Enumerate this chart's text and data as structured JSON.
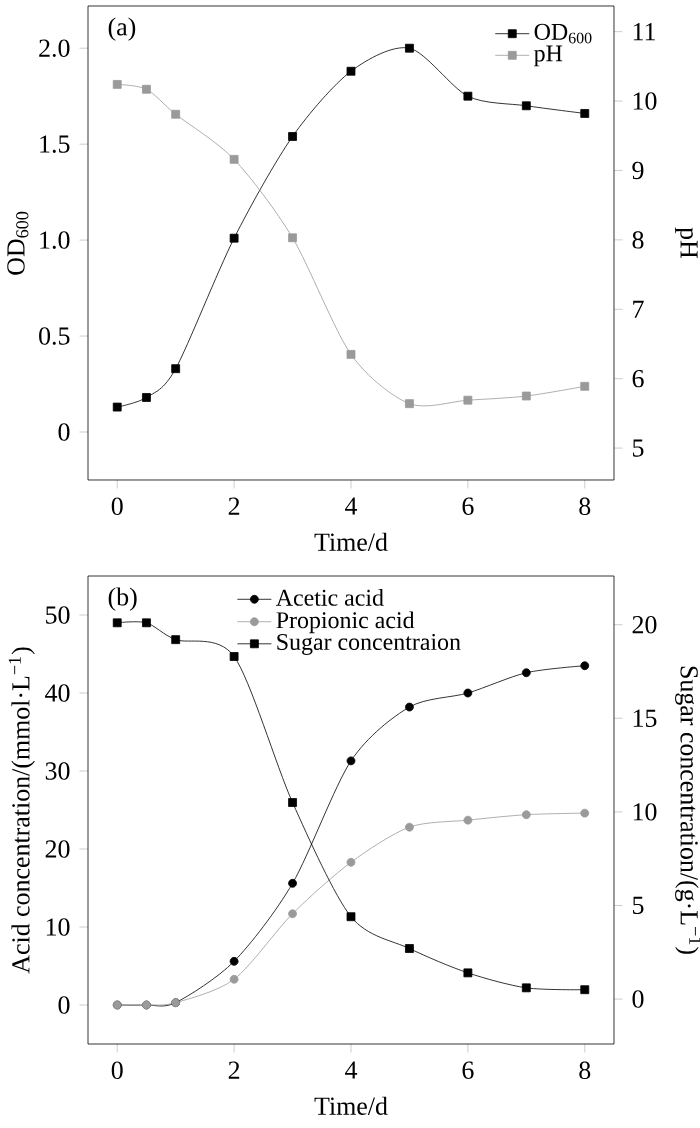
{
  "chart_data": [
    {
      "type": "line",
      "xlabel": "Time/d",
      "ylabel": "OD$_{600}$",
      "y2label": "pH",
      "annotations": [
        "(a)"
      ],
      "xlim": [
        -0.5,
        8.5
      ],
      "xticks": [
        0,
        2,
        4,
        6,
        8
      ],
      "ylim": [
        -0.25,
        2.22
      ],
      "yticks": [
        {
          "value": 0,
          "label": "0"
        },
        0.5,
        {
          "value": 1,
          "label": "1.0"
        },
        1.5,
        {
          "value": 2,
          "label": "2.0"
        }
      ],
      "y2lim": [
        4.54,
        11.37
      ],
      "y2ticks": [
        5,
        6,
        7,
        8,
        9,
        10,
        11
      ],
      "legend": "top right",
      "grid": false,
      "series": [
        {
          "name": "OD$_{600}$",
          "color": "#000000",
          "marker": "square",
          "x": [
            0,
            0.5,
            1,
            2,
            3,
            4,
            5,
            6,
            7,
            8
          ],
          "values": [
            0.13,
            0.18,
            0.33,
            1.01,
            1.54,
            1.88,
            2.0,
            1.75,
            1.7,
            1.66
          ]
        },
        {
          "name": "pH",
          "color": "#9a9a9a",
          "marker": "square",
          "axis": "y2",
          "x": [
            0,
            0.5,
            1,
            2,
            3,
            4,
            5,
            6,
            7,
            8
          ],
          "values": [
            10.24,
            10.17,
            9.81,
            9.16,
            8.03,
            6.35,
            5.64,
            5.69,
            5.75,
            5.89
          ]
        }
      ]
    },
    {
      "type": "line",
      "xlabel": "Time/d",
      "ylabel": "Acid concentration/(mmol·L$^{−1}$)",
      "y2label": "Sugar concentration/(g·L$^{−1}$)",
      "annotations": [
        "(b)"
      ],
      "xlim": [
        -0.5,
        8.5
      ],
      "xticks": [
        0,
        2,
        4,
        6,
        8
      ],
      "ylim": [
        -5,
        55
      ],
      "yticks": [
        0,
        10,
        20,
        30,
        40,
        50
      ],
      "y2lim": [
        -2.4,
        22.6
      ],
      "y2ticks": [
        0,
        5,
        10,
        15,
        20
      ],
      "legend": "top",
      "grid": false,
      "series": [
        {
          "name": "Acetic acid",
          "color": "#000000",
          "marker": "circle",
          "x": [
            0,
            0.5,
            1,
            2,
            3,
            4,
            5,
            6,
            7,
            8
          ],
          "values": [
            0,
            0,
            0.3,
            5.6,
            15.6,
            31.3,
            38.2,
            40.0,
            42.6,
            43.5
          ]
        },
        {
          "name": "Propionic acid",
          "color": "#9a9a9a",
          "marker": "circle",
          "x": [
            0,
            0.5,
            1,
            2,
            3,
            4,
            5,
            6,
            7,
            8
          ],
          "values": [
            0,
            0,
            0.3,
            3.3,
            11.7,
            18.3,
            22.8,
            23.7,
            24.4,
            24.6
          ]
        },
        {
          "name": "Sugar concentraion",
          "color": "#000000",
          "marker": "square",
          "axis": "y2",
          "x": [
            0,
            0.5,
            1,
            2,
            3,
            4,
            5,
            6,
            7,
            8
          ],
          "values": [
            20.1,
            20.1,
            19.2,
            18.3,
            10.5,
            4.4,
            2.7,
            1.4,
            0.6,
            0.5
          ]
        }
      ]
    }
  ]
}
